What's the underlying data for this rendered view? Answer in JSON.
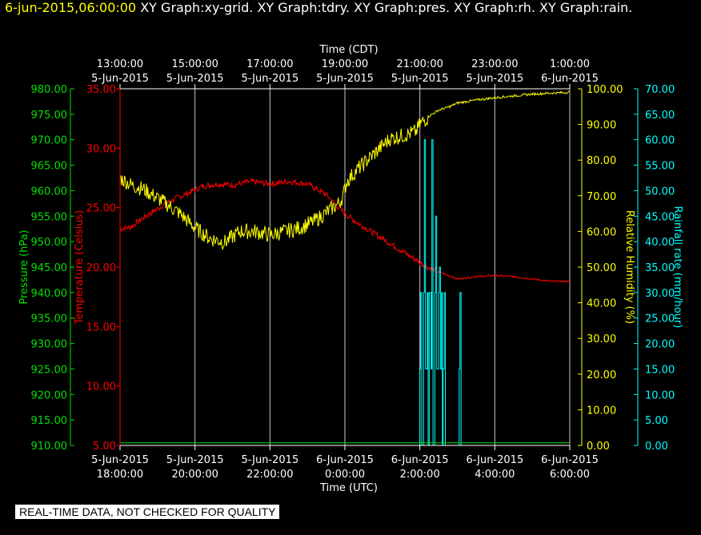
{
  "header": {
    "timestamp": "6-jun-2015,06:00:00",
    "titles": "XY Graph:xy-grid.  XY Graph:tdry.  XY Graph:pres.  XY Graph:rh.  XY Graph:rain."
  },
  "disclaimer": "REAL-TIME DATA, NOT CHECKED FOR QUALITY",
  "colors": {
    "background": "#000000",
    "grid": "#c8c8c8",
    "text": "#ffffff",
    "pressure": "#00e000",
    "temperature": "#ff0000",
    "humidity": "#ffff00",
    "rainfall": "#00ffff"
  },
  "chart_data": {
    "type": "line",
    "top_axis": {
      "title": "Time (CDT)",
      "ticks": [
        {
          "time": "13:00:00",
          "date": "5-Jun-2015"
        },
        {
          "time": "15:00:00",
          "date": "5-Jun-2015"
        },
        {
          "time": "17:00:00",
          "date": "5-Jun-2015"
        },
        {
          "time": "19:00:00",
          "date": "5-Jun-2015"
        },
        {
          "time": "21:00:00",
          "date": "5-Jun-2015"
        },
        {
          "time": "23:00:00",
          "date": "5-Jun-2015"
        },
        {
          "time": "1:00:00",
          "date": "6-Jun-2015"
        }
      ]
    },
    "bottom_axis": {
      "title": "Time (UTC)",
      "ticks": [
        {
          "date": "5-Jun-2015",
          "time": "18:00:00"
        },
        {
          "date": "5-Jun-2015",
          "time": "20:00:00"
        },
        {
          "date": "5-Jun-2015",
          "time": "22:00:00"
        },
        {
          "date": "6-Jun-2015",
          "time": "0:00:00"
        },
        {
          "date": "6-Jun-2015",
          "time": "2:00:00"
        },
        {
          "date": "6-Jun-2015",
          "time": "4:00:00"
        },
        {
          "date": "6-Jun-2015",
          "time": "6:00:00"
        }
      ],
      "range_hours_utc": [
        0,
        12
      ],
      "start_utc": "5-Jun-2015 18:00:00"
    },
    "y_axes": {
      "pressure": {
        "title": "Pressure (hPa)",
        "range": [
          910,
          980
        ],
        "ticks": [
          "980.00",
          "975.00",
          "970.00",
          "965.00",
          "960.00",
          "955.00",
          "950.00",
          "945.00",
          "940.00",
          "935.00",
          "930.00",
          "925.00",
          "920.00",
          "915.00",
          "910.00"
        ]
      },
      "temperature": {
        "title": "Temperature (Celsius)",
        "range": [
          5,
          35
        ],
        "ticks": [
          "35.00",
          "30.00",
          "25.00",
          "20.00",
          "15.00",
          "10.00",
          "5.00"
        ]
      },
      "humidity": {
        "title": "Relative Humidity (%)",
        "range": [
          0,
          100
        ],
        "ticks": [
          "100.00",
          "90.00",
          "80.00",
          "70.00",
          "60.00",
          "50.00",
          "40.00",
          "30.00",
          "20.00",
          "10.00",
          "0.00"
        ]
      },
      "rainfall": {
        "title": "Rainfall rate (mm/hour)",
        "range": [
          0,
          70
        ],
        "ticks": [
          "70.00",
          "65.00",
          "60.00",
          "55.00",
          "50.00",
          "45.00",
          "40.00",
          "35.00",
          "30.00",
          "25.00",
          "20.00",
          "15.00",
          "10.00",
          "5.00",
          "0.00"
        ]
      }
    },
    "grid": true,
    "series": [
      {
        "key": "temperature",
        "x": [
          0,
          0.3,
          0.6,
          0.9,
          1.2,
          1.5,
          1.8,
          2.2,
          2.6,
          3.0,
          3.5,
          4.0,
          4.5,
          5.0,
          5.5,
          5.8,
          6.0,
          6.3,
          6.6,
          7.0,
          7.4,
          7.8,
          8.2,
          8.6,
          9.0,
          9.5,
          10.0,
          10.5,
          11.0,
          11.5,
          12.0
        ],
        "y": [
          23.2,
          23.4,
          24.1,
          24.7,
          25.3,
          25.8,
          26.2,
          26.8,
          27.0,
          26.9,
          27.2,
          27.0,
          27.2,
          27.0,
          26.1,
          25.1,
          24.5,
          23.8,
          23.2,
          22.4,
          21.6,
          20.8,
          20.0,
          19.5,
          19.0,
          19.2,
          19.3,
          19.2,
          19.0,
          18.8,
          18.8
        ]
      },
      {
        "key": "humidity",
        "x": [
          0,
          0.3,
          0.6,
          0.9,
          1.2,
          1.6,
          2.0,
          2.4,
          2.8,
          3.2,
          3.6,
          4.0,
          4.4,
          4.8,
          5.2,
          5.6,
          5.85,
          5.95,
          6.05,
          6.3,
          6.6,
          6.9,
          7.2,
          7.6,
          7.9,
          8.0,
          8.2,
          8.5,
          8.8,
          9.0,
          9.3,
          9.6,
          10.0,
          10.5,
          11.0,
          11.5,
          12.0
        ],
        "y": [
          75,
          73,
          72,
          70,
          68,
          65,
          61,
          58,
          57,
          60,
          60,
          59,
          60,
          61,
          63,
          66,
          68,
          70,
          74,
          77,
          80,
          83,
          86,
          87,
          88,
          90,
          92,
          94,
          95,
          96,
          96.5,
          97,
          97.5,
          98,
          98.5,
          98.8,
          99
        ]
      },
      {
        "key": "rainfall",
        "x": [
          0,
          7.95,
          8.0,
          8.02,
          8.05,
          8.1,
          8.12,
          8.15,
          8.2,
          8.22,
          8.25,
          8.3,
          8.32,
          8.35,
          8.4,
          8.42,
          8.45,
          8.5,
          8.52,
          8.55,
          8.58,
          8.6,
          8.62,
          8.65,
          8.68,
          8.7,
          8.75,
          9.05,
          9.07,
          9.1,
          12.0
        ],
        "y": [
          0,
          0,
          15,
          30,
          0,
          30,
          60,
          15,
          30,
          0,
          30,
          15,
          60,
          0,
          30,
          45,
          15,
          30,
          35,
          15,
          30,
          0,
          15,
          30,
          0,
          0,
          0,
          15,
          30,
          0,
          0
        ]
      },
      {
        "key": "pressure",
        "x": [
          0,
          12
        ],
        "y": [
          910.5,
          910.5
        ]
      }
    ]
  }
}
